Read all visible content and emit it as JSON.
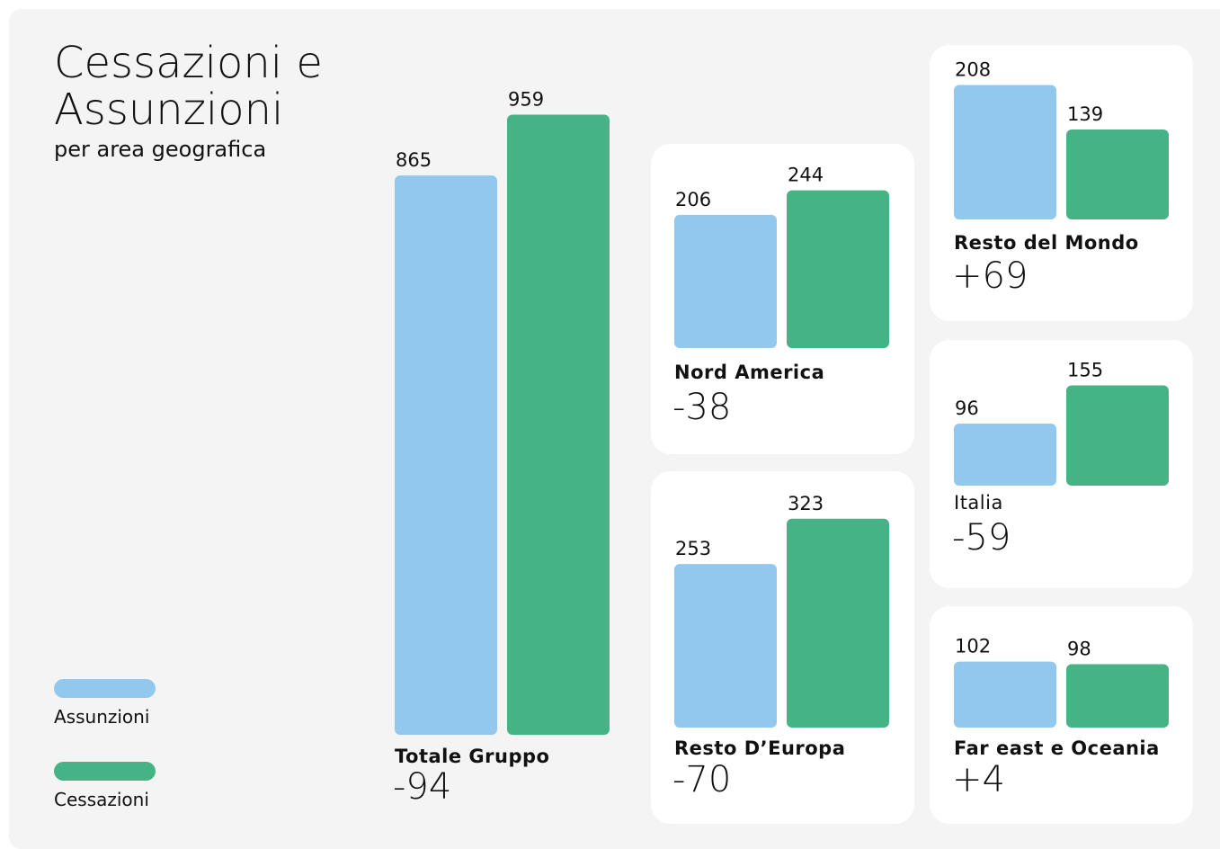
{
  "chart_data": {
    "type": "bar",
    "title": "Cessazioni e Assunzioni",
    "subtitle": "per area geografica",
    "categories": [
      "Totale Gruppo",
      "Nord America",
      "Resto D’Europa",
      "Resto del Mondo",
      "Italia",
      "Far east e Oceania"
    ],
    "series": [
      {
        "name": "Assunzioni",
        "color": "#93c8ee",
        "values": [
          865,
          206,
          253,
          208,
          96,
          102
        ]
      },
      {
        "name": "Cessazioni",
        "color": "#46b387",
        "values": [
          959,
          244,
          323,
          139,
          155,
          98
        ]
      }
    ],
    "annotations": [
      "-94",
      "-38",
      "-70",
      "+69",
      "-59",
      "+4"
    ]
  }
}
